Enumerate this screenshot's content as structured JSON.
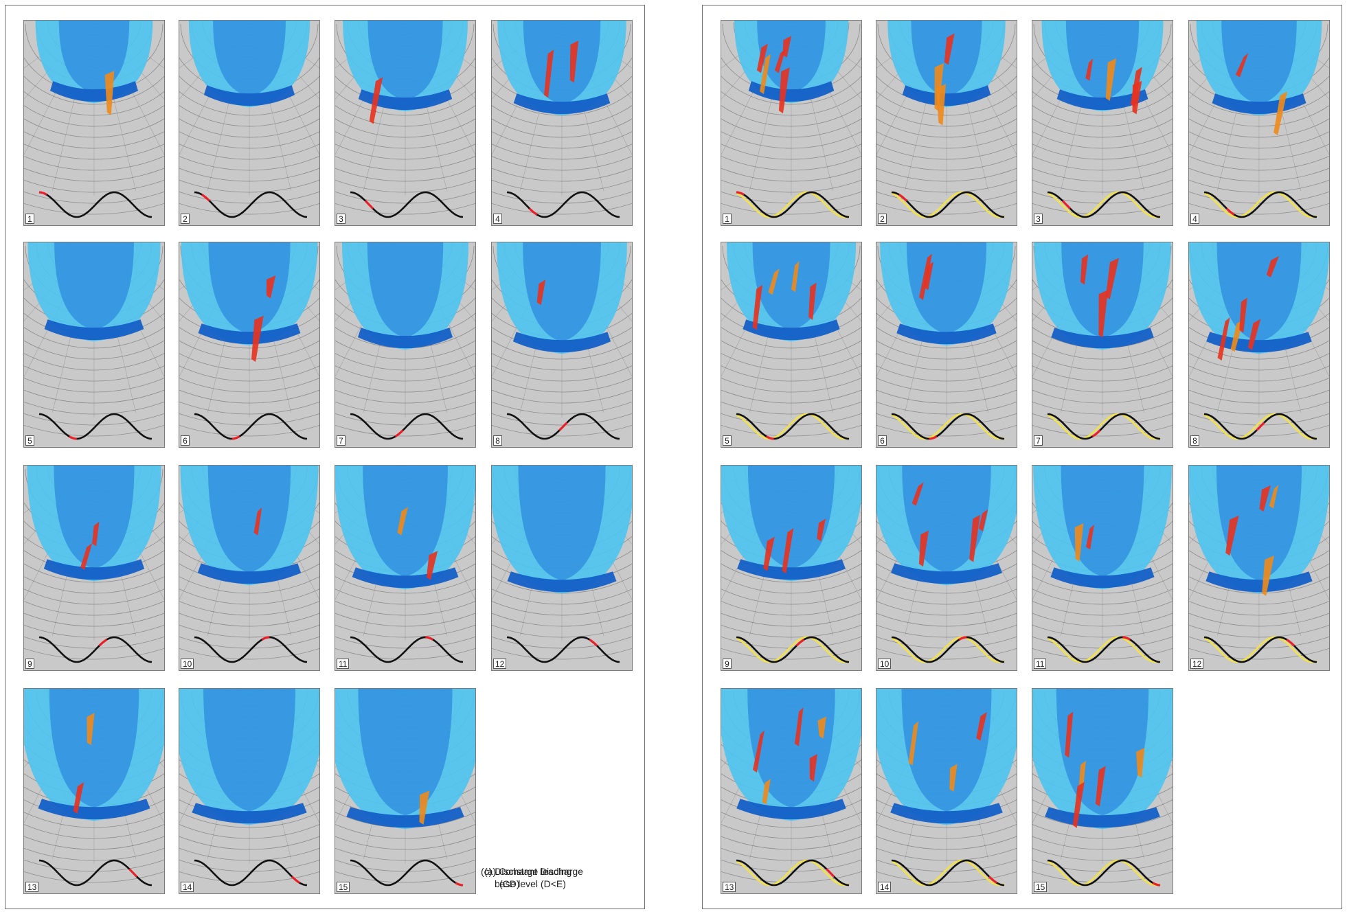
{
  "panel_groups": [
    {
      "id": "a",
      "caption_line1": "(a) Constant Discharge",
      "caption_line2": "(CD)",
      "series_colors": [
        "#111111"
      ],
      "highlight_color": "#e8202a",
      "panels": [
        {
          "label": "1"
        },
        {
          "label": "2"
        },
        {
          "label": "3"
        },
        {
          "label": "4"
        },
        {
          "label": "5"
        },
        {
          "label": "6"
        },
        {
          "label": "7"
        },
        {
          "label": "8"
        },
        {
          "label": "9"
        },
        {
          "label": "10"
        },
        {
          "label": "11"
        },
        {
          "label": "12"
        },
        {
          "label": "13"
        },
        {
          "label": "14"
        },
        {
          "label": "15"
        }
      ]
    },
    {
      "id": "c",
      "caption_line1": "(c) Discharge leading",
      "caption_line2": "base level (D<E)",
      "series_colors": [
        "#f2e24a",
        "#111111"
      ],
      "highlight_color": "#e8202a",
      "panels": [
        {
          "label": "1"
        },
        {
          "label": "2"
        },
        {
          "label": "3"
        },
        {
          "label": "4"
        },
        {
          "label": "5"
        },
        {
          "label": "6"
        },
        {
          "label": "7"
        },
        {
          "label": "8"
        },
        {
          "label": "9"
        },
        {
          "label": "10"
        },
        {
          "label": "11"
        },
        {
          "label": "12"
        },
        {
          "label": "13"
        },
        {
          "label": "14"
        },
        {
          "label": "15"
        }
      ]
    }
  ],
  "colors": {
    "background_gray": "#c9c9c9",
    "contour": "#5a5a5a",
    "deposition_light_blue": "#4cc3ef",
    "deposition_blue": "#2f8fe0",
    "deposition_dark_blue": "#1560c8",
    "erosion_red": "#e8321e",
    "erosion_orange": "#f08a1a"
  }
}
